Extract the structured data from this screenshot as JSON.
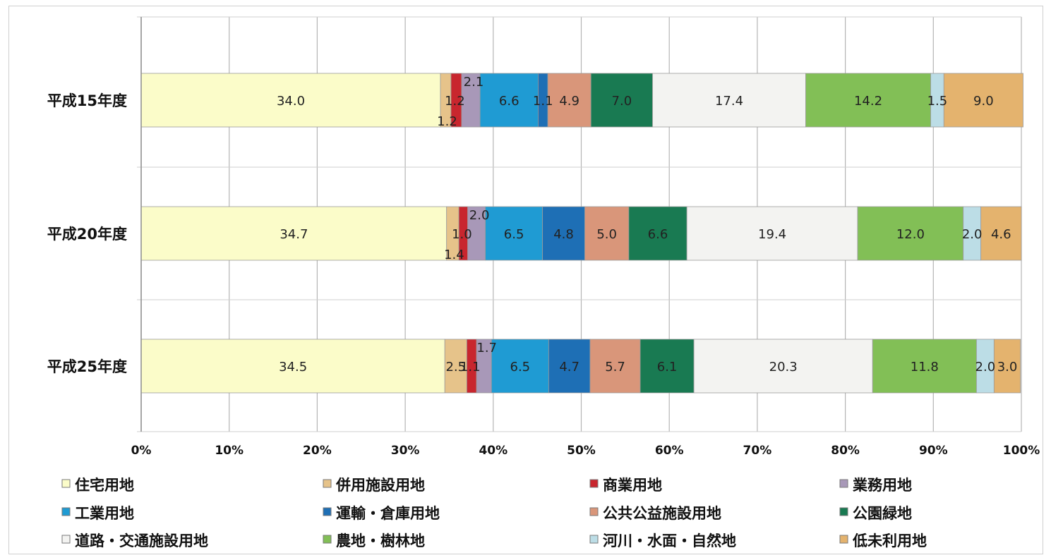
{
  "chart_data": {
    "type": "bar",
    "orientation": "horizontal",
    "stacked": "percent",
    "categories": [
      "平成15年度",
      "平成20年度",
      "平成25年度"
    ],
    "xlim": [
      0,
      100
    ],
    "x_ticks": [
      "0%",
      "10%",
      "20%",
      "30%",
      "40%",
      "50%",
      "60%",
      "70%",
      "80%",
      "90%",
      "100%"
    ],
    "grid": true,
    "legend_position": "bottom",
    "series": [
      {
        "name": "住宅用地",
        "color": "#fbfcc9",
        "values": [
          34.0,
          34.7,
          34.5
        ],
        "labels": [
          "34.0",
          "34.7",
          "34.5"
        ]
      },
      {
        "name": "併用施設用地",
        "color": "#e6c38a",
        "values": [
          1.2,
          1.4,
          2.5
        ],
        "labels": [
          "1.2",
          "1.4",
          "2.5"
        ]
      },
      {
        "name": "商業用地",
        "color": "#c8262e",
        "values": [
          1.2,
          1.0,
          1.1
        ],
        "labels": [
          "1.2",
          "1.0",
          "1.1"
        ]
      },
      {
        "name": "業務用地",
        "color": "#a898b8",
        "values": [
          2.1,
          2.0,
          1.7
        ],
        "labels": [
          "2.1",
          "2.0",
          "1.7"
        ]
      },
      {
        "name": "工業用地",
        "color": "#1f9bd3",
        "values": [
          6.6,
          6.5,
          6.5
        ],
        "labels": [
          "6.6",
          "6.5",
          "6.5"
        ]
      },
      {
        "name": "運輸・倉庫用地",
        "color": "#1e6fb5",
        "values": [
          1.1,
          4.8,
          4.7
        ],
        "labels": [
          "1.1",
          "4.8",
          "4.7"
        ]
      },
      {
        "name": "公共公益施設用地",
        "color": "#d9967a",
        "values": [
          4.9,
          5.0,
          5.7
        ],
        "labels": [
          "4.9",
          "5.0",
          "5.7"
        ]
      },
      {
        "name": "公園緑地",
        "color": "#197a52",
        "values": [
          7.0,
          6.6,
          6.1
        ],
        "labels": [
          "7.0",
          "6.6",
          "6.1"
        ]
      },
      {
        "name": "道路・交通施設用地",
        "color": "#f3f3f1",
        "values": [
          17.4,
          19.4,
          20.3
        ],
        "labels": [
          "17.4",
          "19.4",
          "20.3"
        ]
      },
      {
        "name": "農地・樹林地",
        "color": "#82bf56",
        "values": [
          14.2,
          12.0,
          11.8
        ],
        "labels": [
          "14.2",
          "12.0",
          "11.8"
        ]
      },
      {
        "name": "河川・水面・自然地",
        "color": "#bcdde6",
        "values": [
          1.5,
          2.0,
          2.0
        ],
        "labels": [
          "1.5",
          "2.0",
          "2.0"
        ]
      },
      {
        "name": "低未利用地",
        "color": "#e4b36e",
        "values": [
          9.0,
          4.6,
          3.0
        ],
        "labels": [
          "9.0",
          "4.6",
          "3.0"
        ]
      }
    ]
  }
}
